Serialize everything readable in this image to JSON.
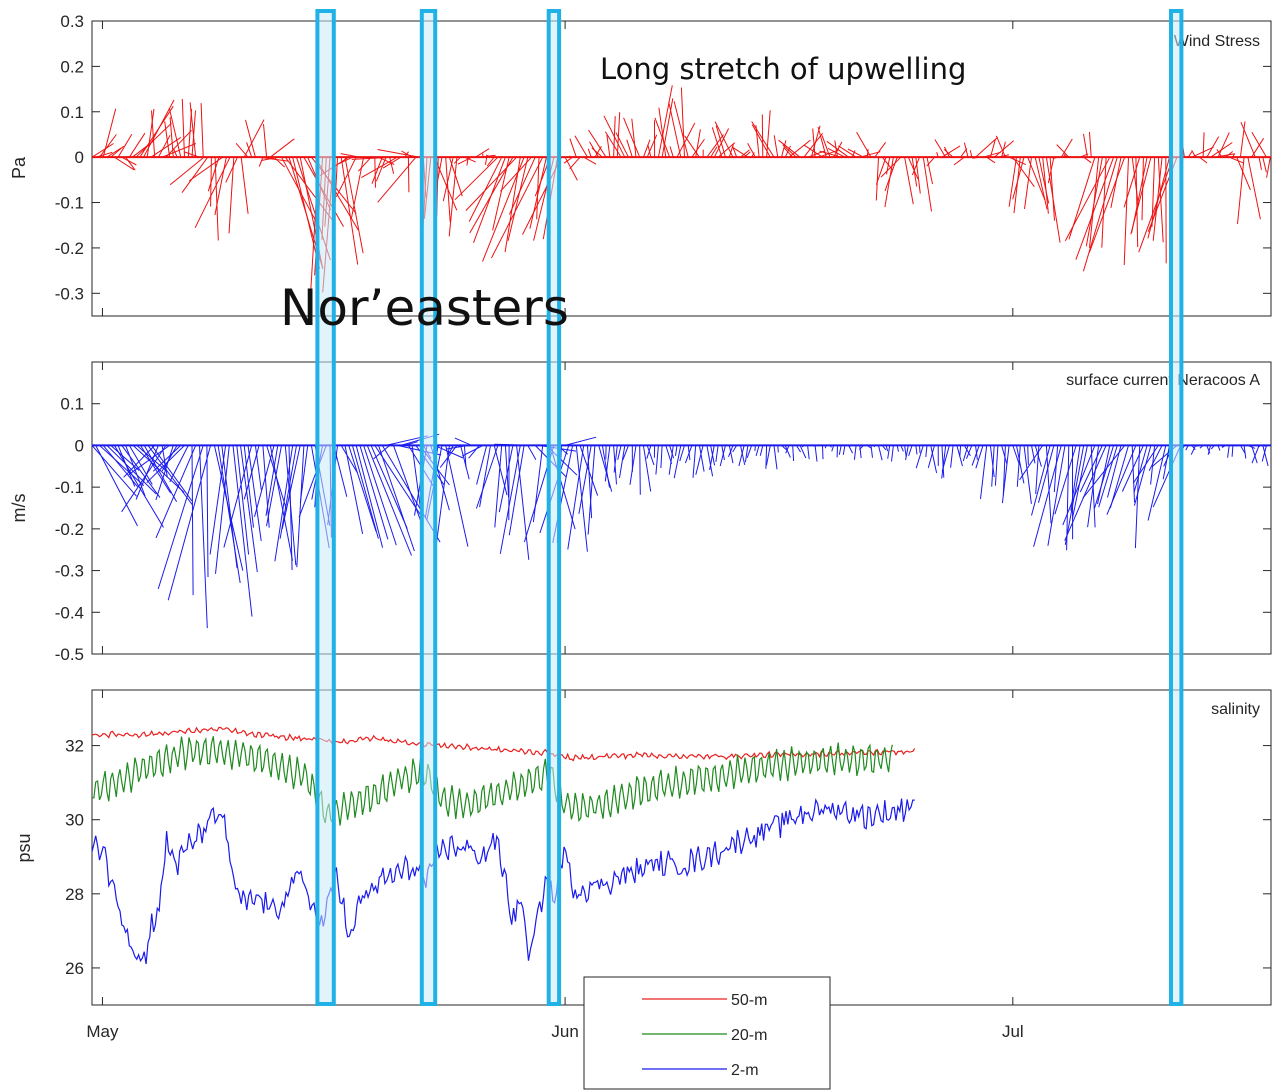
{
  "annotations": {
    "upwelling": "Long stretch of upwelling",
    "noreasters": "Nor’easters"
  },
  "colors": {
    "wind": "#ee1111",
    "current": "#1a1aee",
    "s50": "#e8201f",
    "s20": "#1f8a1f",
    "s2": "#1a1aee",
    "highlight_fill": "#c9e9f8",
    "highlight_stroke": "#20b2e6",
    "axis": "#262626"
  },
  "highlight_periods": [
    {
      "start": 14.4,
      "end": 15.5
    },
    {
      "start": 21.4,
      "end": 22.3
    },
    {
      "start": 29.9,
      "end": 30.6
    },
    {
      "start": 71.6,
      "end": 72.3
    }
  ],
  "chart_data": [
    {
      "type": "stick",
      "panel_label": "Wind Stress",
      "ylabel": "Pa",
      "ylim": [
        -0.35,
        0.3
      ],
      "yticks": [
        -0.3,
        -0.2,
        -0.1,
        0,
        0.1,
        0.2,
        0.3
      ],
      "ytick_labels": [
        "-0.3",
        "-0.2",
        "-0.1",
        "0",
        "0.1",
        "0.2",
        "0.3"
      ],
      "xlim": [
        -0.7,
        78.3
      ],
      "xticks": [
        0,
        31,
        61
      ],
      "xtick_labels": [
        "",
        "",
        ""
      ],
      "stick_step_days": 0.25,
      "envelopes": [
        {
          "t0": -0.7,
          "t1": 2.0,
          "u": [
            0.6,
            1.5
          ],
          "v": [
            -0.05,
            0.11
          ]
        },
        {
          "t0": 2.0,
          "t1": 4.5,
          "u": [
            -0.5,
            2.5
          ],
          "v": [
            0.02,
            0.13
          ]
        },
        {
          "t0": 4.5,
          "t1": 6.8,
          "u": [
            -1.0,
            1.0
          ],
          "v": [
            0.0,
            0.14
          ]
        },
        {
          "t0": 6.8,
          "t1": 9.5,
          "u": [
            -2.5,
            0.5
          ],
          "v": [
            -0.2,
            -0.05
          ]
        },
        {
          "t0": 9.5,
          "t1": 12.0,
          "u": [
            -1.5,
            2.0
          ],
          "v": [
            -0.06,
            0.09
          ]
        },
        {
          "t0": 12.0,
          "t1": 14.5,
          "u": [
            1.0,
            3.5
          ],
          "v": [
            -0.28,
            -0.1
          ]
        },
        {
          "t0": 14.5,
          "t1": 16.5,
          "u": [
            -1.5,
            1.5
          ],
          "v": [
            -0.33,
            -0.15
          ]
        },
        {
          "t0": 16.5,
          "t1": 19.0,
          "u": [
            -2.0,
            1.5
          ],
          "v": [
            -0.2,
            0.03
          ]
        },
        {
          "t0": 19.0,
          "t1": 21.5,
          "u": [
            -3.0,
            0.5
          ],
          "v": [
            -0.1,
            0.03
          ]
        },
        {
          "t0": 21.5,
          "t1": 24.0,
          "u": [
            -1.0,
            1.5
          ],
          "v": [
            -0.24,
            -0.05
          ]
        },
        {
          "t0": 24.0,
          "t1": 26.5,
          "u": [
            -1.0,
            1.5
          ],
          "v": [
            -0.02,
            0.02
          ]
        },
        {
          "t0": 26.5,
          "t1": 31.0,
          "u": [
            -3.5,
            0.0
          ],
          "v": [
            -0.24,
            -0.05
          ]
        },
        {
          "t0": 31.0,
          "t1": 33.5,
          "u": [
            -1.0,
            1.0
          ],
          "v": [
            -0.07,
            0.05
          ]
        },
        {
          "t0": 33.5,
          "t1": 37.0,
          "u": [
            -1.5,
            1.5
          ],
          "v": [
            0.02,
            0.1
          ]
        },
        {
          "t0": 37.0,
          "t1": 40.0,
          "u": [
            -1.5,
            1.5
          ],
          "v": [
            0.02,
            0.16
          ]
        },
        {
          "t0": 40.0,
          "t1": 44.0,
          "u": [
            -1.5,
            1.5
          ],
          "v": [
            0.01,
            0.08
          ]
        },
        {
          "t0": 44.0,
          "t1": 47.0,
          "u": [
            -1.5,
            1.5
          ],
          "v": [
            0.02,
            0.11
          ]
        },
        {
          "t0": 47.0,
          "t1": 52.0,
          "u": [
            -1.5,
            1.5
          ],
          "v": [
            0.01,
            0.07
          ]
        },
        {
          "t0": 52.0,
          "t1": 55.5,
          "u": [
            -1.5,
            1.0
          ],
          "v": [
            -0.12,
            -0.02
          ]
        },
        {
          "t0": 55.5,
          "t1": 61.0,
          "u": [
            -1.0,
            1.5
          ],
          "v": [
            -0.02,
            0.05
          ]
        },
        {
          "t0": 61.0,
          "t1": 64.0,
          "u": [
            -1.0,
            1.5
          ],
          "v": [
            -0.2,
            -0.05
          ]
        },
        {
          "t0": 64.0,
          "t1": 66.5,
          "u": [
            -1.0,
            1.0
          ],
          "v": [
            -0.02,
            0.06
          ]
        },
        {
          "t0": 66.5,
          "t1": 70.0,
          "u": [
            -3.0,
            0.5
          ],
          "v": [
            -0.27,
            -0.1
          ]
        },
        {
          "t0": 70.0,
          "t1": 72.5,
          "u": [
            -2.5,
            0.5
          ],
          "v": [
            -0.24,
            -0.1
          ]
        },
        {
          "t0": 72.5,
          "t1": 75.0,
          "u": [
            -0.5,
            1.5
          ],
          "v": [
            -0.05,
            0.08
          ]
        },
        {
          "t0": 75.0,
          "t1": 78.3,
          "u": [
            -1.5,
            1.0
          ],
          "v": [
            -0.18,
            0.08
          ]
        }
      ]
    },
    {
      "type": "stick",
      "panel_label": "surface current Neracoos A",
      "ylabel": "m/s",
      "ylim": [
        -0.5,
        0.2
      ],
      "yticks": [
        -0.5,
        -0.4,
        -0.3,
        -0.2,
        -0.1,
        0,
        0.1
      ],
      "ytick_labels": [
        "-0.5",
        "-0.4",
        "-0.3",
        "-0.2",
        "-0.1",
        "0",
        "0.1"
      ],
      "xlim": [
        -0.7,
        78.3
      ],
      "xticks": [
        0,
        31,
        61
      ],
      "xtick_labels": [
        "",
        "",
        ""
      ],
      "stick_step_days": 0.25,
      "envelopes": [
        {
          "t0": -0.7,
          "t1": 3.5,
          "u": [
            1.0,
            3.5
          ],
          "v": [
            -0.2,
            -0.05
          ]
        },
        {
          "t0": 3.5,
          "t1": 6.0,
          "u": [
            -3.0,
            1.0
          ],
          "v": [
            -0.18,
            -0.06
          ]
        },
        {
          "t0": 6.0,
          "t1": 9.0,
          "u": [
            -3.5,
            2.0
          ],
          "v": [
            -0.45,
            -0.18
          ]
        },
        {
          "t0": 9.0,
          "t1": 11.5,
          "u": [
            -2.0,
            1.5
          ],
          "v": [
            -0.32,
            -0.1
          ]
        },
        {
          "t0": 11.5,
          "t1": 14.5,
          "u": [
            -2.5,
            1.5
          ],
          "v": [
            -0.3,
            -0.12
          ]
        },
        {
          "t0": 14.5,
          "t1": 16.5,
          "u": [
            -2.5,
            1.5
          ],
          "v": [
            -0.26,
            -0.05
          ]
        },
        {
          "t0": 16.5,
          "t1": 19.0,
          "u": [
            1.5,
            4.0
          ],
          "v": [
            -0.3,
            -0.1
          ]
        },
        {
          "t0": 19.0,
          "t1": 21.0,
          "u": [
            -3.0,
            3.0
          ],
          "v": [
            -0.2,
            0.06
          ]
        },
        {
          "t0": 21.0,
          "t1": 23.5,
          "u": [
            -2.0,
            2.0
          ],
          "v": [
            -0.28,
            0.02
          ]
        },
        {
          "t0": 23.5,
          "t1": 26.0,
          "u": [
            -1.5,
            1.5
          ],
          "v": [
            -0.12,
            0.02
          ]
        },
        {
          "t0": 26.0,
          "t1": 28.5,
          "u": [
            -1.5,
            1.5
          ],
          "v": [
            -0.28,
            -0.1
          ]
        },
        {
          "t0": 28.5,
          "t1": 31.5,
          "u": [
            -3.0,
            2.5
          ],
          "v": [
            -0.24,
            0.02
          ]
        },
        {
          "t0": 31.5,
          "t1": 33.5,
          "u": [
            -1.5,
            1.5
          ],
          "v": [
            -0.26,
            -0.1
          ]
        },
        {
          "t0": 33.5,
          "t1": 37.0,
          "u": [
            -0.5,
            0.5
          ],
          "v": [
            -0.12,
            -0.03
          ]
        },
        {
          "t0": 37.0,
          "t1": 42.0,
          "u": [
            -0.5,
            0.5
          ],
          "v": [
            -0.08,
            -0.02
          ]
        },
        {
          "t0": 42.0,
          "t1": 47.0,
          "u": [
            -0.4,
            0.4
          ],
          "v": [
            -0.06,
            -0.01
          ]
        },
        {
          "t0": 47.0,
          "t1": 55.0,
          "u": [
            -0.3,
            0.3
          ],
          "v": [
            -0.04,
            0.0
          ]
        },
        {
          "t0": 55.0,
          "t1": 59.0,
          "u": [
            -0.5,
            0.5
          ],
          "v": [
            -0.08,
            -0.02
          ]
        },
        {
          "t0": 59.0,
          "t1": 63.0,
          "u": [
            -0.5,
            0.5
          ],
          "v": [
            -0.14,
            -0.04
          ]
        },
        {
          "t0": 63.0,
          "t1": 66.0,
          "u": [
            -2.0,
            0.5
          ],
          "v": [
            -0.26,
            -0.08
          ]
        },
        {
          "t0": 66.0,
          "t1": 70.0,
          "u": [
            -3.0,
            0.5
          ],
          "v": [
            -0.25,
            -0.1
          ]
        },
        {
          "t0": 70.0,
          "t1": 72.5,
          "u": [
            -2.0,
            0.5
          ],
          "v": [
            -0.2,
            -0.05
          ]
        },
        {
          "t0": 72.5,
          "t1": 76.0,
          "u": [
            -0.3,
            0.3
          ],
          "v": [
            -0.03,
            0.0
          ]
        },
        {
          "t0": 76.0,
          "t1": 78.3,
          "u": [
            -0.5,
            0.5
          ],
          "v": [
            -0.06,
            0.0
          ]
        }
      ]
    },
    {
      "type": "line",
      "panel_label": "salinity",
      "ylabel": "psu",
      "ylim": [
        25,
        33.5
      ],
      "yticks": [
        26,
        28,
        30,
        32
      ],
      "ytick_labels": [
        "26",
        "28",
        "30",
        "32"
      ],
      "xlim": [
        -0.7,
        78.3
      ],
      "xticks": [
        0,
        31,
        61
      ],
      "xtick_labels": [
        "May",
        "Jun",
        "Jul"
      ],
      "step_days": 0.125,
      "series": [
        {
          "name": "50-m",
          "color_key": "s50",
          "noise": 0.05,
          "tidal_amp": 0.04,
          "points": [
            [
              -0.7,
              32.3
            ],
            [
              3,
              32.3
            ],
            [
              6,
              32.4
            ],
            [
              8,
              32.45
            ],
            [
              10,
              32.3
            ],
            [
              13,
              32.2
            ],
            [
              16,
              32.1
            ],
            [
              18,
              32.2
            ],
            [
              20,
              32.1
            ],
            [
              23,
              32.0
            ],
            [
              26,
              31.9
            ],
            [
              30,
              31.8
            ],
            [
              31.5,
              31.65
            ],
            [
              33,
              31.7
            ],
            [
              36,
              31.75
            ],
            [
              40,
              31.7
            ],
            [
              45,
              31.75
            ],
            [
              50,
              31.8
            ],
            [
              54.5,
              31.85
            ]
          ]
        },
        {
          "name": "20-m",
          "color_key": "s20",
          "noise": 0.1,
          "tidal_amp": 0.38,
          "points": [
            [
              -0.7,
              30.8
            ],
            [
              1,
              31.0
            ],
            [
              3,
              31.4
            ],
            [
              5.5,
              31.8
            ],
            [
              7.5,
              31.9
            ],
            [
              9,
              31.8
            ],
            [
              11,
              31.6
            ],
            [
              12.5,
              31.3
            ],
            [
              13.5,
              31.3
            ],
            [
              15,
              30.1
            ],
            [
              16,
              30.3
            ],
            [
              18,
              30.6
            ],
            [
              20,
              31.1
            ],
            [
              21.5,
              31.3
            ],
            [
              23,
              30.5
            ],
            [
              24.5,
              30.4
            ],
            [
              26.5,
              30.7
            ],
            [
              28.5,
              31.0
            ],
            [
              30,
              31.3
            ],
            [
              30.8,
              30.5
            ],
            [
              32,
              30.3
            ],
            [
              33.5,
              30.4
            ],
            [
              36,
              30.8
            ],
            [
              40,
              31.1
            ],
            [
              44,
              31.4
            ],
            [
              48,
              31.6
            ],
            [
              53,
              31.65
            ]
          ]
        },
        {
          "name": "2-m",
          "color_key": "s2",
          "noise": 0.28,
          "tidal_amp": 0.12,
          "points": [
            [
              -0.7,
              29.2
            ],
            [
              0.1,
              29.3
            ],
            [
              0.4,
              28.6
            ],
            [
              1,
              27.8
            ],
            [
              1.5,
              27.2
            ],
            [
              2.2,
              26.4
            ],
            [
              2.8,
              26.2
            ],
            [
              3.3,
              27.2
            ],
            [
              3.8,
              27.6
            ],
            [
              4.3,
              29.4
            ],
            [
              5.0,
              28.8
            ],
            [
              5.8,
              29.3
            ],
            [
              6.5,
              29.6
            ],
            [
              7.4,
              30.0
            ],
            [
              8.1,
              30.2
            ],
            [
              8.8,
              28.2
            ],
            [
              9.5,
              27.7
            ],
            [
              10.5,
              27.9
            ],
            [
              11.5,
              27.5
            ],
            [
              12.5,
              28.1
            ],
            [
              13.3,
              28.5
            ],
            [
              14.0,
              27.8
            ],
            [
              14.5,
              27.1
            ],
            [
              15.1,
              27.6
            ],
            [
              15.7,
              28.7
            ],
            [
              16.2,
              27.5
            ],
            [
              16.6,
              26.6
            ],
            [
              17.2,
              27.8
            ],
            [
              18.5,
              28.3
            ],
            [
              20,
              28.6
            ],
            [
              21,
              28.7
            ],
            [
              21.8,
              28.3
            ],
            [
              22.6,
              29.2
            ],
            [
              23.5,
              29.3
            ],
            [
              24.5,
              29.2
            ],
            [
              25.5,
              29.0
            ],
            [
              26.3,
              29.5
            ],
            [
              27.0,
              28.4
            ],
            [
              27.5,
              27.2
            ],
            [
              28.0,
              28.0
            ],
            [
              28.6,
              26.2
            ],
            [
              29.1,
              27.2
            ],
            [
              29.7,
              28.4
            ],
            [
              30.3,
              27.8
            ],
            [
              30.9,
              29.2
            ],
            [
              31.6,
              28.1
            ],
            [
              33,
              28.2
            ],
            [
              35,
              28.5
            ],
            [
              37,
              28.8
            ],
            [
              39,
              28.8
            ],
            [
              41,
              29.1
            ],
            [
              43,
              29.5
            ],
            [
              45,
              29.8
            ],
            [
              47,
              30.2
            ],
            [
              49,
              30.3
            ],
            [
              51,
              30.1
            ],
            [
              53,
              30.2
            ],
            [
              54.5,
              30.5
            ]
          ]
        }
      ]
    }
  ]
}
